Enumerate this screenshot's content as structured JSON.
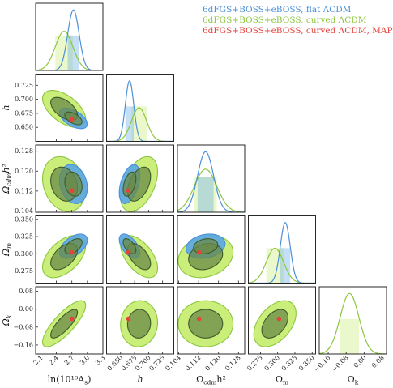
{
  "chart_data": {
    "type": "scatter",
    "subtype": "corner-plot",
    "params": [
      {
        "name": "lnAs",
        "label": "ln(10¹⁰A",
        "label_sub": "s",
        "label_tail": ")",
        "range": [
          2.0,
          3.3
        ],
        "ticks": [
          "2.1",
          "2.4",
          "2.7",
          "3.0",
          "3.3"
        ],
        "tick_values": [
          2.1,
          2.4,
          2.7,
          3.0,
          3.3
        ]
      },
      {
        "name": "h",
        "label": "h",
        "range": [
          0.625,
          0.745
        ],
        "ticks": [
          "0.650",
          "0.675",
          "0.700",
          "0.725"
        ],
        "tick_values": [
          0.65,
          0.675,
          0.7,
          0.725
        ]
      },
      {
        "name": "ocdm",
        "label": "Ω",
        "label_sub": "cdm",
        "label_tail": "h²",
        "range": [
          0.1035,
          0.1305
        ],
        "ticks": [
          "0.104",
          "0.112",
          "0.120",
          "0.128"
        ],
        "tick_values": [
          0.104,
          0.112,
          0.12,
          0.128
        ]
      },
      {
        "name": "om",
        "label": "Ω",
        "label_sub": "m",
        "label_tail": "",
        "range": [
          0.2575,
          0.355
        ],
        "ticks": [
          "0.275",
          "0.300",
          "0.325",
          "0.350"
        ],
        "tick_values": [
          0.275,
          0.3,
          0.325,
          0.35
        ]
      },
      {
        "name": "ok",
        "label": "Ω",
        "label_sub": "k",
        "label_tail": "",
        "range": [
          -0.2,
          0.1
        ],
        "ticks": [
          "−0.16",
          "−0.08",
          "0.00",
          "0.08"
        ],
        "tick_values": [
          -0.16,
          -0.08,
          0.0,
          0.08
        ]
      }
    ],
    "series": [
      {
        "name": "6dFGS+BOSS+eBOSS, flat ΛCDM",
        "color": "#4a90d9",
        "fill": "#5aa6e6",
        "mean": {
          "lnAs": 2.73,
          "h": 0.666,
          "ocdm": 0.1148,
          "om": 0.311
        },
        "sigma": {
          "lnAs": 0.11,
          "h": 0.0075,
          "ocdm": 0.0032,
          "om": 0.0072
        }
      },
      {
        "name": "6dFGS+BOSS+eBOSS, curved ΛCDM",
        "color": "#8cc63f",
        "fill": "#c4ec6a",
        "mean": {
          "lnAs": 2.55,
          "h": 0.683,
          "ocdm": 0.1148,
          "om": 0.296,
          "ok": -0.065
        },
        "sigma": {
          "lnAs": 0.17,
          "h": 0.0135,
          "ocdm": 0.0045,
          "om": 0.0125,
          "ok": 0.042
        }
      },
      {
        "name": "6dFGS+BOSS+eBOSS, curved ΛCDM, MAP",
        "color": "#e8413c",
        "point": {
          "lnAs": 2.7,
          "h": 0.664,
          "ocdm": 0.1122,
          "om": 0.302,
          "ok": -0.043
        }
      }
    ],
    "correlations": {
      "h|lnAs": -0.55,
      "ocdm|lnAs": -0.2,
      "ocdm|h": 0.45,
      "om|lnAs": 0.5,
      "om|h": -0.55,
      "om|ocdm": 0.2,
      "ok|lnAs": 0.8,
      "ok|h": 0.05,
      "ok|ocdm": 0.0,
      "ok|om": 0.45
    }
  }
}
